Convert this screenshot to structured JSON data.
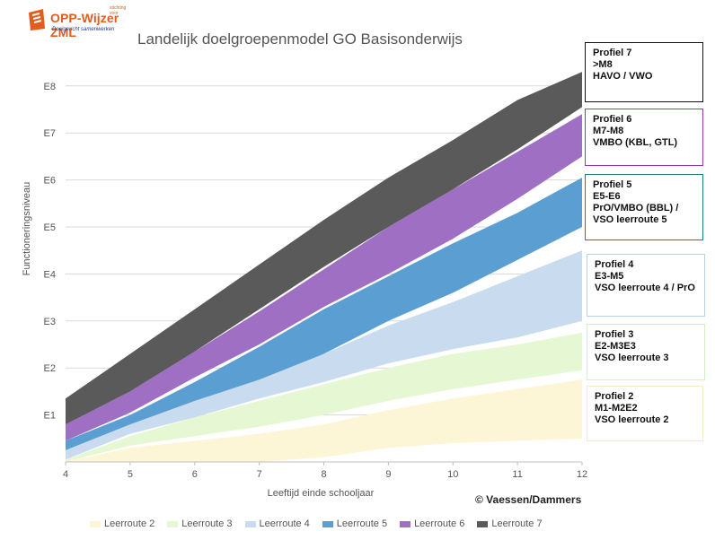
{
  "logo": {
    "small": "stichting voor",
    "name": "OPP-Wijzer ZML",
    "tagline": "Doelgericht samenwerken"
  },
  "credit": "© Vaessen/Dammers",
  "chart_data": {
    "type": "area",
    "title": "Landelijk doelgroepenmodel GO Basisonderwijs",
    "xlabel": "Leeftijd einde schooljaar",
    "ylabel": "Functioneringsniveau",
    "x": [
      4,
      5,
      6,
      7,
      8,
      9,
      10,
      11,
      12
    ],
    "xlim": [
      4,
      12
    ],
    "ylim": [
      0,
      8.3
    ],
    "y_ticks": [
      1,
      2,
      3,
      4,
      5,
      6,
      7,
      8
    ],
    "y_tick_labels": [
      "E1",
      "E2",
      "E3",
      "E4",
      "E5",
      "E6",
      "E7",
      "E8"
    ],
    "grid": true,
    "legend_position": "bottom",
    "series": [
      {
        "name": "Leerroute 2",
        "color": "#fcf6d6",
        "lower": [
          0,
          0,
          0,
          0,
          0.1,
          0.3,
          0.4,
          0.45,
          0.5
        ],
        "upper": [
          0,
          0.3,
          0.45,
          0.6,
          0.8,
          1.1,
          1.35,
          1.55,
          1.75
        ]
      },
      {
        "name": "Leerroute 3",
        "color": "#e6f8d3",
        "lower": [
          0,
          0.35,
          0.55,
          0.75,
          1.0,
          1.3,
          1.55,
          1.75,
          1.95
        ],
        "upper": [
          0.05,
          0.55,
          0.95,
          1.3,
          1.65,
          2.0,
          2.3,
          2.5,
          2.75
        ]
      },
      {
        "name": "Leerroute 4",
        "color": "#c8dbef",
        "lower": [
          0.05,
          0.6,
          0.95,
          1.35,
          1.7,
          2.1,
          2.4,
          2.65,
          3.0
        ],
        "upper": [
          0.25,
          0.8,
          1.35,
          1.8,
          2.3,
          2.9,
          3.4,
          3.95,
          4.5
        ]
      },
      {
        "name": "Leerroute 5",
        "color": "#5b9fd2",
        "lower": [
          0.25,
          0.8,
          1.3,
          1.75,
          2.3,
          3.0,
          3.6,
          4.3,
          5.0
        ],
        "upper": [
          0.45,
          1.0,
          1.7,
          2.45,
          3.25,
          3.95,
          4.65,
          5.3,
          6.05
        ]
      },
      {
        "name": "Leerroute 6",
        "color": "#9f6fc3",
        "lower": [
          0.45,
          1.05,
          1.8,
          2.5,
          3.3,
          4.0,
          4.75,
          5.6,
          6.5
        ],
        "upper": [
          0.8,
          1.5,
          2.35,
          3.2,
          4.1,
          5.0,
          5.8,
          6.6,
          7.4
        ]
      },
      {
        "name": "Leerroute 7",
        "color": "#5a5a5a",
        "lower": [
          0.8,
          1.5,
          2.35,
          3.25,
          4.15,
          5.0,
          5.8,
          6.65,
          7.55
        ],
        "upper": [
          1.35,
          2.3,
          3.25,
          4.2,
          5.15,
          6.05,
          6.85,
          7.7,
          8.3
        ]
      }
    ]
  },
  "profiles": [
    {
      "title": "Profiel 7",
      "lines": [
        ">M8",
        "HAVO / VWO"
      ],
      "border": "#111111"
    },
    {
      "title": "Profiel 6",
      "lines": [
        "M7-M8",
        "VMBO (KBL, GTL)"
      ],
      "border": "#8a3bb0"
    },
    {
      "title": "Profiel 5",
      "lines": [
        "E5-E6",
        "PrO/VMBO (BBL) /",
        "VSO leerroute 5"
      ],
      "border": "#1f8080"
    },
    {
      "title": "Profiel 4",
      "lines": [
        "E3-M5",
        "VSO leerroute 4 / PrO"
      ],
      "border": "#b8d2e6"
    },
    {
      "title": "Profiel 3",
      "lines": [
        "E2-M3E3",
        "VSO leerroute 3"
      ],
      "border": "#d4efc0"
    },
    {
      "title": "Profiel 2",
      "lines": [
        "M1-M2E2",
        "VSO leerroute 2"
      ],
      "border": "#f1edc6"
    }
  ]
}
